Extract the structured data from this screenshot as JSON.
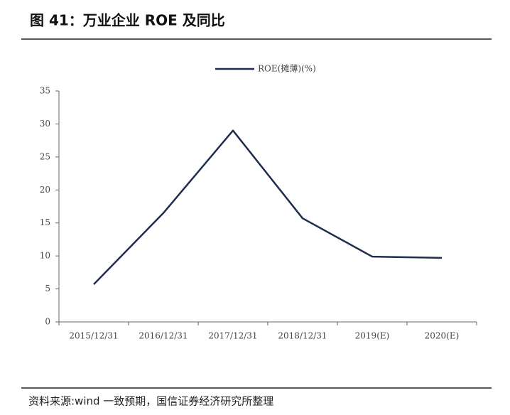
{
  "chart_data": {
    "type": "line",
    "title": "图 41：万业企业 ROE 及同比",
    "source": "资料来源:wind 一致预期，国信证券经济研究所整理",
    "categories": [
      "2015/12/31",
      "2016/12/31",
      "2017/12/31",
      "2018/12/31",
      "2019(E)",
      "2020(E)"
    ],
    "series": [
      {
        "name": "ROE(摊薄)(%)",
        "color": "#1f2d4e",
        "values": [
          5.7,
          16.5,
          29,
          15.7,
          9.9,
          9.7
        ]
      }
    ],
    "ylim": [
      0,
      35
    ],
    "yticks": [
      0,
      5,
      10,
      15,
      20,
      25,
      30,
      35
    ],
    "legend": "top"
  }
}
